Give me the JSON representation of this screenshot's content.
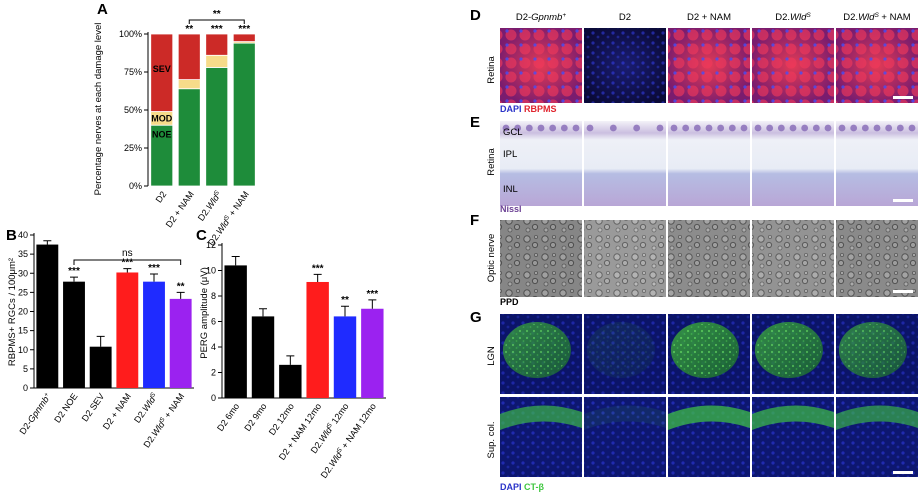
{
  "panels": {
    "A": {
      "letter": "A",
      "ylabel": "Percentage nerves at each damage level",
      "yticks": [
        "0%",
        "25%",
        "50%",
        "75%",
        "100%"
      ],
      "categories": [
        {
          "pre": "D2",
          "it": "",
          "post": ""
        },
        {
          "pre": "D2 + NAM",
          "it": "",
          "post": ""
        },
        {
          "pre": "D2.",
          "it": "Wld",
          "post": ""
        },
        {
          "pre": "D2.",
          "it": "Wld",
          "post": " + NAM"
        }
      ],
      "levels": [
        {
          "label": "SEV",
          "color": "#cc2a27"
        },
        {
          "label": "MOD",
          "color": "#f6db8a"
        },
        {
          "label": "NOE",
          "color": "#1e8c3a"
        }
      ],
      "sig_above": [
        "",
        "**",
        "***",
        "***"
      ],
      "bracket_sig": "**"
    },
    "B": {
      "letter": "B",
      "ylabel": "RBPMS+ RGCs / 100μm²",
      "yticks": [
        "0",
        "5",
        "10",
        "15",
        "20",
        "25",
        "30",
        "35",
        "40"
      ],
      "categories": [
        {
          "pre": "D2-",
          "it": "Gpnmb",
          "post": ""
        },
        {
          "pre": "D2 NOE",
          "it": "",
          "post": ""
        },
        {
          "pre": "D2 SEV",
          "it": "",
          "post": ""
        },
        {
          "pre": "D2 + NAM",
          "it": "",
          "post": ""
        },
        {
          "pre": "D2.",
          "it": "Wld",
          "post": ""
        },
        {
          "pre": "D2.",
          "it": "Wld",
          "post": " + NAM"
        }
      ],
      "sig": [
        "",
        "***",
        "",
        "***",
        "***",
        "**"
      ],
      "ns_label": "ns"
    },
    "C": {
      "letter": "C",
      "ylabel": "PERG amplitude (μV)",
      "yticks": [
        "0",
        "2",
        "4",
        "6",
        "8",
        "10",
        "12"
      ],
      "categories": [
        {
          "pre": "D2 6mo",
          "it": "",
          "post": ""
        },
        {
          "pre": "D2 9mo",
          "it": "",
          "post": ""
        },
        {
          "pre": "D2 12mo",
          "it": "",
          "post": ""
        },
        {
          "pre": "D2 + NAM 12mo",
          "it": "",
          "post": ""
        },
        {
          "pre": "D2.",
          "it": "Wld",
          "post": " 12mo"
        },
        {
          "pre": "D2.",
          "it": "Wld",
          "post": " + NAM 12mo"
        }
      ],
      "sig": [
        "",
        "",
        "",
        "***",
        "**",
        "***"
      ]
    },
    "D": {
      "letter": "D",
      "col_headers": [
        {
          "pre": "D2-",
          "it": "Gpnmb",
          "post": ""
        },
        {
          "pre": "D2",
          "it": "",
          "post": ""
        },
        {
          "pre": "D2 + NAM",
          "it": "",
          "post": ""
        },
        {
          "pre": "D2.",
          "it": "Wld",
          "post": ""
        },
        {
          "pre": "D2.",
          "it": "Wld",
          "post": " + NAM"
        }
      ],
      "row_label": "Retina",
      "stain_1": "DAPI",
      "stain_2": "RBPMS"
    },
    "E": {
      "letter": "E",
      "row_label": "Retina",
      "layers": [
        "GCL",
        "IPL",
        "INL"
      ],
      "stain": "Nissl"
    },
    "F": {
      "letter": "F",
      "row_label": "Optic nerve",
      "stain": "PPD"
    },
    "G": {
      "letter": "G",
      "row_labels": [
        "LGN",
        "Sup. col."
      ],
      "stain_1": "DAPI",
      "stain_2": "CT-β"
    }
  },
  "sup_plus": "+",
  "sup_s": "S",
  "colors": {
    "black": "#000000",
    "red": "#ff1c1c",
    "blue": "#1f2bff",
    "purple": "#9b22f0",
    "sev": "#cc2a27",
    "mod": "#f6db8a",
    "noe": "#1e8c3a",
    "rbpms": "#d8283c",
    "dapi": "#2a33c8",
    "ctb": "#46e04a"
  },
  "chart_data": [
    {
      "type": "bar",
      "panel": "A",
      "stacked": true,
      "categories": [
        "D2",
        "D2 + NAM",
        "D2.WldS",
        "D2.WldS + NAM"
      ],
      "series": [
        {
          "name": "NOE",
          "values": [
            40,
            64,
            78,
            94
          ]
        },
        {
          "name": "MOD",
          "values": [
            9,
            6,
            8,
            1
          ]
        },
        {
          "name": "SEV",
          "values": [
            51,
            30,
            14,
            5
          ]
        }
      ],
      "ylabel": "Percentage nerves at each damage level",
      "ylim": [
        0,
        100
      ]
    },
    {
      "type": "bar",
      "panel": "B",
      "categories": [
        "D2-Gpnmb+",
        "D2 NOE",
        "D2 SEV",
        "D2 + NAM",
        "D2.WldS",
        "D2.WldS + NAM"
      ],
      "values": [
        37.5,
        27.8,
        10.8,
        30.2,
        27.8,
        23.3
      ],
      "errors": [
        1.0,
        1.2,
        2.7,
        1.0,
        2.0,
        1.7
      ],
      "ylabel": "RBPMS+ RGCs / 100μm²",
      "ylim": [
        0,
        40
      ]
    },
    {
      "type": "bar",
      "panel": "C",
      "categories": [
        "D2 6mo",
        "D2 9mo",
        "D2 12mo",
        "D2 + NAM 12mo",
        "D2.WldS 12mo",
        "D2.WldS + NAM 12mo"
      ],
      "values": [
        10.4,
        6.4,
        2.6,
        9.1,
        6.4,
        7.0
      ],
      "errors": [
        0.7,
        0.6,
        0.7,
        0.6,
        0.8,
        0.7
      ],
      "ylabel": "PERG amplitude (μV)",
      "ylim": [
        0,
        12
      ]
    }
  ]
}
